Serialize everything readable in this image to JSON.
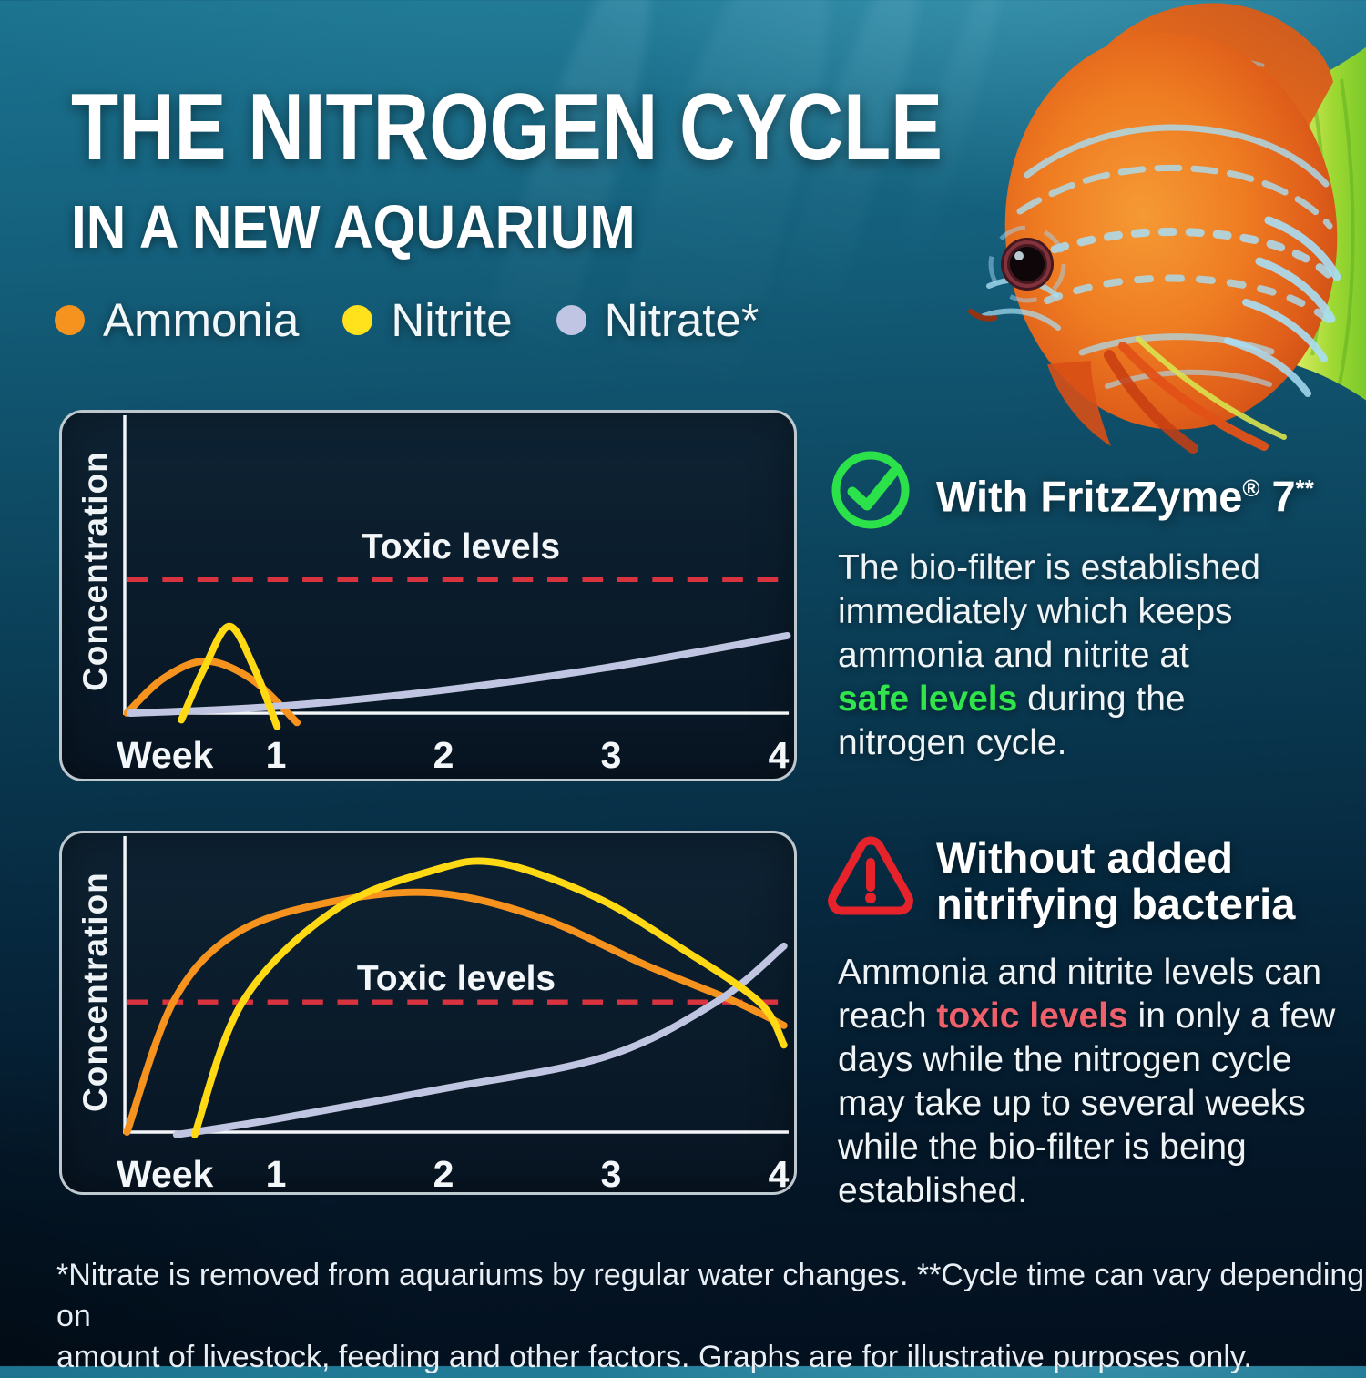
{
  "title": {
    "line1": "THE NITROGEN CYCLE",
    "line2": "IN A NEW AQUARIUM"
  },
  "legend": {
    "items": [
      {
        "label": "Ammonia",
        "color": "#f6921e"
      },
      {
        "label": "Nitrite",
        "color": "#ffe11c"
      },
      {
        "label": "Nitrate*",
        "color": "#bfc5e2"
      }
    ]
  },
  "chart_data": [
    {
      "id": "with_fritzzyme",
      "type": "line",
      "context_heading": "With FritzZyme® 7**",
      "ylabel": "Concentration",
      "x_axis_word": "Week",
      "x_ticks": [
        "1",
        "2",
        "3",
        "4"
      ],
      "x_units": "weeks",
      "y_units": "relative concentration (toxic threshold = 1.0)",
      "grid": false,
      "toxic_line": {
        "label": "Toxic levels",
        "level": 1.0,
        "color": "#d8333f"
      },
      "series": [
        {
          "name": "Ammonia",
          "color": "#f6921e",
          "points_weeks_conc": [
            [
              0.1,
              0.0
            ],
            [
              0.32,
              0.26
            ],
            [
              0.58,
              0.39
            ],
            [
              0.86,
              0.25
            ],
            [
              1.13,
              -0.07
            ]
          ]
        },
        {
          "name": "Nitrate",
          "color": "#c0c5e2",
          "points_weeks_conc": [
            [
              0.12,
              0.0
            ],
            [
              1.0,
              0.05
            ],
            [
              2.0,
              0.17
            ],
            [
              3.0,
              0.34
            ],
            [
              4.1,
              0.58
            ]
          ]
        },
        {
          "name": "Nitrite",
          "color": "#ffd913",
          "points_weeks_conc": [
            [
              0.43,
              -0.05
            ],
            [
              0.57,
              0.34
            ],
            [
              0.72,
              0.65
            ],
            [
              0.87,
              0.34
            ],
            [
              1.01,
              -0.1
            ]
          ]
        }
      ]
    },
    {
      "id": "without_added_bacteria",
      "type": "line",
      "context_heading": "Without added nitrifying bacteria",
      "ylabel": "Concentration",
      "x_axis_word": "Week",
      "x_ticks": [
        "1",
        "2",
        "3",
        "4"
      ],
      "x_units": "weeks",
      "y_units": "relative concentration (toxic threshold = 1.0)",
      "grid": false,
      "toxic_line": {
        "label": "Toxic levels",
        "level": 1.0,
        "color": "#d8333f"
      },
      "series": [
        {
          "name": "Ammonia",
          "color": "#f6921e",
          "points_weeks_conc": [
            [
              0.1,
              0.0
            ],
            [
              0.38,
              1.0
            ],
            [
              0.75,
              1.52
            ],
            [
              1.3,
              1.76
            ],
            [
              1.95,
              1.84
            ],
            [
              2.6,
              1.65
            ],
            [
              3.25,
              1.28
            ],
            [
              3.79,
              1.0
            ],
            [
              4.08,
              0.82
            ]
          ]
        },
        {
          "name": "Nitrate",
          "color": "#c0c5e2",
          "points_weeks_conc": [
            [
              0.4,
              -0.02
            ],
            [
              1.0,
              0.1
            ],
            [
              2.0,
              0.33
            ],
            [
              3.0,
              0.58
            ],
            [
              3.67,
              1.0
            ],
            [
              4.08,
              1.43
            ]
          ]
        },
        {
          "name": "Nitrite",
          "color": "#ffd913",
          "points_weeks_conc": [
            [
              0.51,
              -0.02
            ],
            [
              0.8,
              1.0
            ],
            [
              1.35,
              1.7
            ],
            [
              1.95,
              2.01
            ],
            [
              2.35,
              2.07
            ],
            [
              2.95,
              1.8
            ],
            [
              3.45,
              1.42
            ],
            [
              3.93,
              1.0
            ],
            [
              4.08,
              0.67
            ]
          ]
        }
      ]
    }
  ],
  "sections": [
    {
      "heading_pre": "With FritzZyme",
      "heading_reg": "®",
      "heading_mid": " 7",
      "heading_sup": "**",
      "body_lines": [
        {
          "pre": "The bio-filter is established"
        },
        {
          "pre": "immediately which keeps"
        },
        {
          "pre": "ammonia and nitrite at"
        },
        {
          "hl": "safe levels",
          "post": " during the"
        },
        {
          "pre": "nitrogen cycle."
        }
      ],
      "highlight_color": "#30e44b",
      "icon_color": "#2ce24b"
    },
    {
      "heading_line1": "Without added",
      "heading_line2": "nitrifying bacteria",
      "body_lines": [
        {
          "pre": "Ammonia and nitrite levels can"
        },
        {
          "pre": "reach ",
          "hl": "toxic levels",
          "post": " in only a few"
        },
        {
          "pre": "days while the nitrogen cycle"
        },
        {
          "pre": "may take up to several weeks"
        },
        {
          "pre": "while the bio-filter is being"
        },
        {
          "pre": "established."
        }
      ],
      "highlight_color": "#f0606a",
      "icon_color": "#e6222a"
    }
  ],
  "footer": {
    "line1": "*Nitrate is removed from aquariums by regular water changes. **Cycle time can vary depending on",
    "line2": "amount of livestock, feeding and other factors. Graphs are for illustrative purposes only."
  }
}
